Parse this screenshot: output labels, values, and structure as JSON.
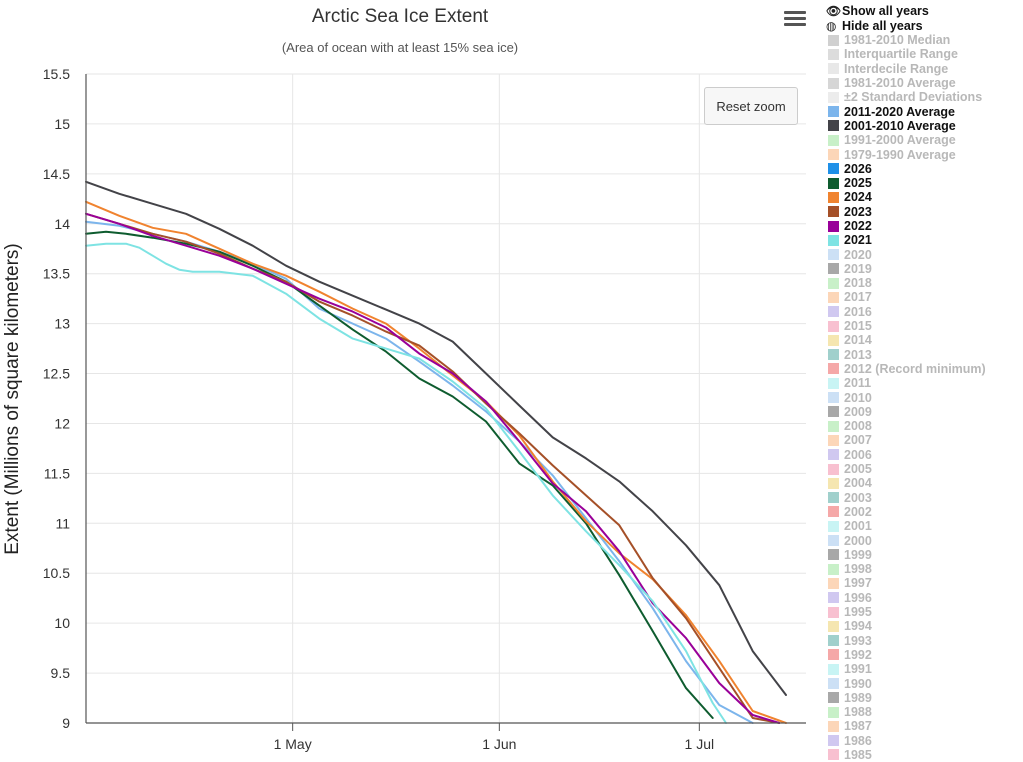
{
  "chart_data": {
    "type": "line",
    "title": "Arctic Sea Ice Extent",
    "subtitle": "(Area of ocean with at least 15% sea ice)",
    "ylabel": "Extent (Millions of square kilometers)",
    "xlabel": "",
    "ylim": [
      9,
      15.5
    ],
    "yticks": [
      "15.5",
      "15",
      "14.5",
      "14",
      "13.5",
      "13",
      "12.5",
      "12",
      "11.5",
      "11",
      "10.5",
      "10",
      "9.5",
      "9"
    ],
    "xticks": [
      {
        "label": "1 May",
        "day": 121
      },
      {
        "label": "1 Jun",
        "day": 152
      },
      {
        "label": "1 Jul",
        "day": 182
      }
    ],
    "xlim": [
      90,
      198
    ],
    "x_unit": "day of year",
    "series": [
      {
        "name": "2001-2010 Average",
        "color": "#434348",
        "x": [
          90,
          95,
          100,
          105,
          110,
          115,
          120,
          125,
          130,
          135,
          140,
          145,
          150,
          155,
          160,
          165,
          170,
          175,
          180,
          185,
          190,
          195
        ],
        "y": [
          14.42,
          14.3,
          14.2,
          14.1,
          13.95,
          13.78,
          13.58,
          13.42,
          13.28,
          13.14,
          13.0,
          12.82,
          12.5,
          12.18,
          11.86,
          11.65,
          11.42,
          11.12,
          10.78,
          10.38,
          9.72,
          9.28
        ]
      },
      {
        "name": "2011-2020 Average",
        "color": "#7cb5ec",
        "x": [
          90,
          95,
          100,
          105,
          110,
          115,
          120,
          125,
          130,
          135,
          140,
          145,
          150,
          155,
          160,
          165,
          170,
          175,
          180,
          185,
          190
        ],
        "y": [
          14.02,
          13.98,
          13.9,
          13.82,
          13.72,
          13.6,
          13.45,
          13.15,
          13.0,
          12.85,
          12.62,
          12.38,
          12.12,
          11.82,
          11.48,
          11.05,
          10.62,
          10.15,
          9.62,
          9.18,
          8.9
        ]
      },
      {
        "name": "2025",
        "color": "#0e5c2f",
        "x": [
          90,
          93,
          96,
          100,
          105,
          110,
          115,
          120,
          125,
          130,
          135,
          140,
          145,
          150,
          155,
          160,
          165,
          170,
          175,
          180,
          184
        ],
        "y": [
          13.9,
          13.92,
          13.9,
          13.86,
          13.8,
          13.72,
          13.58,
          13.42,
          13.18,
          12.94,
          12.72,
          12.45,
          12.27,
          12.02,
          11.6,
          11.38,
          11.0,
          10.48,
          9.92,
          9.35,
          9.05
        ]
      },
      {
        "name": "2024",
        "color": "#f0832f",
        "x": [
          90,
          95,
          100,
          105,
          110,
          115,
          120,
          125,
          130,
          135,
          140,
          145,
          150,
          155,
          160,
          165,
          170,
          175,
          180,
          185,
          190,
          195
        ],
        "y": [
          14.22,
          14.08,
          13.96,
          13.9,
          13.75,
          13.6,
          13.48,
          13.32,
          13.15,
          13.0,
          12.75,
          12.48,
          12.22,
          11.88,
          11.42,
          11.02,
          10.7,
          10.44,
          10.08,
          9.62,
          9.12,
          8.9
        ]
      },
      {
        "name": "2023",
        "color": "#a55028",
        "x": [
          90,
          95,
          100,
          105,
          110,
          115,
          120,
          125,
          130,
          135,
          140,
          145,
          150,
          155,
          160,
          165,
          170,
          175,
          180,
          185,
          190,
          194
        ],
        "y": [
          14.1,
          14.0,
          13.9,
          13.82,
          13.7,
          13.55,
          13.42,
          13.22,
          13.08,
          12.92,
          12.78,
          12.52,
          12.2,
          11.9,
          11.58,
          11.28,
          10.98,
          10.45,
          10.05,
          9.55,
          9.05,
          8.9
        ]
      },
      {
        "name": "2022",
        "color": "#990099",
        "x": [
          90,
          95,
          100,
          105,
          110,
          115,
          120,
          125,
          130,
          135,
          140,
          145,
          150,
          155,
          160,
          165,
          170,
          175,
          180,
          185,
          190,
          194
        ],
        "y": [
          14.1,
          14.0,
          13.88,
          13.78,
          13.68,
          13.55,
          13.4,
          13.25,
          13.12,
          12.96,
          12.7,
          12.5,
          12.22,
          11.82,
          11.4,
          11.12,
          10.72,
          10.2,
          9.85,
          9.4,
          9.08,
          8.9
        ]
      },
      {
        "name": "2021",
        "color": "#7ee3e3",
        "x": [
          90,
          93,
          96,
          98,
          100,
          102,
          104,
          106,
          108,
          110,
          115,
          120,
          125,
          130,
          135,
          140,
          145,
          150,
          155,
          160,
          165,
          170,
          175,
          180,
          184,
          186
        ],
        "y": [
          13.78,
          13.8,
          13.8,
          13.76,
          13.68,
          13.6,
          13.54,
          13.52,
          13.52,
          13.52,
          13.48,
          13.3,
          13.05,
          12.85,
          12.75,
          12.65,
          12.42,
          12.15,
          11.72,
          11.28,
          10.92,
          10.58,
          10.22,
          9.72,
          9.2,
          8.95
        ]
      }
    ]
  },
  "ui": {
    "reset_zoom": "Reset zoom",
    "menu_icon": "hamburger-menu-icon"
  },
  "legend": {
    "show_all": "Show all years",
    "hide_all": "Hide all years",
    "items": [
      {
        "label": "1981-2010 Median",
        "color": "#d0d0d0",
        "on": false
      },
      {
        "label": "Interquartile Range",
        "color": "#dcdcdc",
        "on": false
      },
      {
        "label": "Interdecile Range",
        "color": "#e8e8e8",
        "on": false
      },
      {
        "label": "1981-2010 Average",
        "color": "#d6d6d6",
        "on": false
      },
      {
        "label": "±2 Standard Deviations",
        "color": "#ececec",
        "on": false
      },
      {
        "label": "2011-2020 Average",
        "color": "#7cb5ec",
        "on": true
      },
      {
        "label": "2001-2010 Average",
        "color": "#434348",
        "on": true
      },
      {
        "label": "1991-2000 Average",
        "color": "#c8f0c8",
        "on": false
      },
      {
        "label": "1979-1990 Average",
        "color": "#fcd6b8",
        "on": false
      },
      {
        "label": "2026",
        "color": "#1e90e8",
        "on": true
      },
      {
        "label": "2025",
        "color": "#0e5c2f",
        "on": true
      },
      {
        "label": "2024",
        "color": "#f0832f",
        "on": true
      },
      {
        "label": "2023",
        "color": "#a55028",
        "on": true
      },
      {
        "label": "2022",
        "color": "#990099",
        "on": true
      },
      {
        "label": "2021",
        "color": "#7ee3e3",
        "on": true
      },
      {
        "label": "2020",
        "color": "#cce0f5",
        "on": false
      },
      {
        "label": "2019",
        "color": "#a8a8a8",
        "on": false
      },
      {
        "label": "2018",
        "color": "#c8f0c8",
        "on": false
      },
      {
        "label": "2017",
        "color": "#fcd6b8",
        "on": false
      },
      {
        "label": "2016",
        "color": "#d0c8f0",
        "on": false
      },
      {
        "label": "2015",
        "color": "#f8c0d0",
        "on": false
      },
      {
        "label": "2014",
        "color": "#f5e6b0",
        "on": false
      },
      {
        "label": "2013",
        "color": "#a0d0cc",
        "on": false
      },
      {
        "label": "2012 (Record minimum)",
        "color": "#f5a8a8",
        "on": false
      },
      {
        "label": "2011",
        "color": "#c8f4f4",
        "on": false
      },
      {
        "label": "2010",
        "color": "#cce0f5",
        "on": false
      },
      {
        "label": "2009",
        "color": "#a8a8a8",
        "on": false
      },
      {
        "label": "2008",
        "color": "#c8f0c8",
        "on": false
      },
      {
        "label": "2007",
        "color": "#fcd6b8",
        "on": false
      },
      {
        "label": "2006",
        "color": "#d0c8f0",
        "on": false
      },
      {
        "label": "2005",
        "color": "#f8c0d0",
        "on": false
      },
      {
        "label": "2004",
        "color": "#f5e6b0",
        "on": false
      },
      {
        "label": "2003",
        "color": "#a0d0cc",
        "on": false
      },
      {
        "label": "2002",
        "color": "#f5a8a8",
        "on": false
      },
      {
        "label": "2001",
        "color": "#c8f4f4",
        "on": false
      },
      {
        "label": "2000",
        "color": "#cce0f5",
        "on": false
      },
      {
        "label": "1999",
        "color": "#a8a8a8",
        "on": false
      },
      {
        "label": "1998",
        "color": "#c8f0c8",
        "on": false
      },
      {
        "label": "1997",
        "color": "#fcd6b8",
        "on": false
      },
      {
        "label": "1996",
        "color": "#d0c8f0",
        "on": false
      },
      {
        "label": "1995",
        "color": "#f8c0d0",
        "on": false
      },
      {
        "label": "1994",
        "color": "#f5e6b0",
        "on": false
      },
      {
        "label": "1993",
        "color": "#a0d0cc",
        "on": false
      },
      {
        "label": "1992",
        "color": "#f5a8a8",
        "on": false
      },
      {
        "label": "1991",
        "color": "#c8f4f4",
        "on": false
      },
      {
        "label": "1990",
        "color": "#cce0f5",
        "on": false
      },
      {
        "label": "1989",
        "color": "#a8a8a8",
        "on": false
      },
      {
        "label": "1988",
        "color": "#c8f0c8",
        "on": false
      },
      {
        "label": "1987",
        "color": "#fcd6b8",
        "on": false
      },
      {
        "label": "1986",
        "color": "#d0c8f0",
        "on": false
      },
      {
        "label": "1985",
        "color": "#f8c0d0",
        "on": false
      }
    ]
  }
}
